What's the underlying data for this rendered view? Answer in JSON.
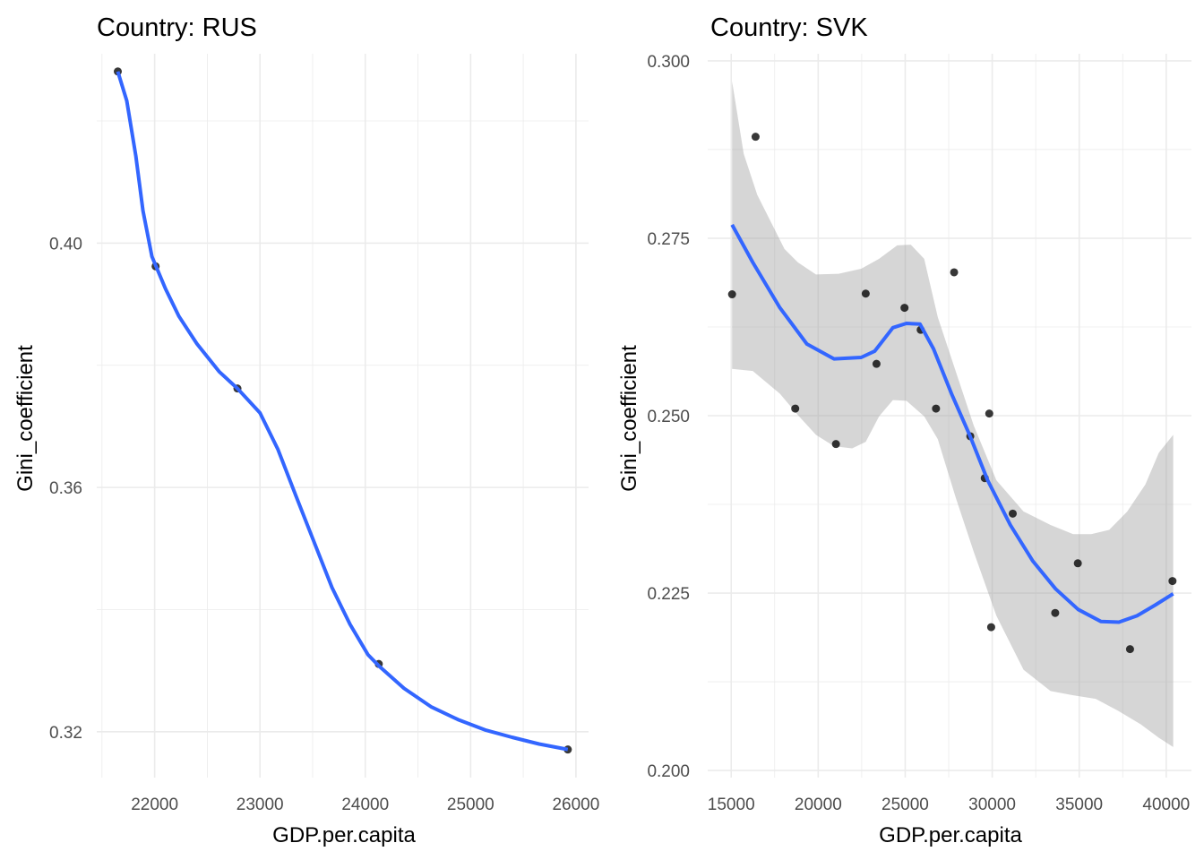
{
  "chart_data": [
    {
      "type": "scatter",
      "title": "Country: RUS",
      "xlabel": "GDP.per.capita",
      "ylabel": "Gini_coefficient",
      "xlim": [
        21450,
        26120
      ],
      "ylim": [
        0.3125,
        0.431
      ],
      "x_ticks": [
        22000,
        23000,
        24000,
        25000,
        26000
      ],
      "x_tick_labels": [
        "22000",
        "23000",
        "24000",
        "25000",
        "26000"
      ],
      "y_ticks": [
        0.32,
        0.36,
        0.4
      ],
      "y_tick_labels": [
        "0.32",
        "0.36",
        "0.40"
      ],
      "grid": true,
      "smooth_color": "#3366ff",
      "point_color": "#000000",
      "points": [
        {
          "x": 21650,
          "y": 0.4281
        },
        {
          "x": 22009,
          "y": 0.3962
        },
        {
          "x": 22786,
          "y": 0.3762
        },
        {
          "x": 24128,
          "y": 0.3311
        },
        {
          "x": 25923,
          "y": 0.3171
        }
      ],
      "smooth": [
        [
          21650,
          0.4281
        ],
        [
          21735,
          0.4233
        ],
        [
          21821,
          0.4143
        ],
        [
          21889,
          0.4053
        ],
        [
          21974,
          0.3978
        ],
        [
          22103,
          0.3925
        ],
        [
          22231,
          0.388
        ],
        [
          22402,
          0.3835
        ],
        [
          22615,
          0.3789
        ],
        [
          22786,
          0.3762
        ],
        [
          23000,
          0.3722
        ],
        [
          23171,
          0.3662
        ],
        [
          23342,
          0.3586
        ],
        [
          23513,
          0.3511
        ],
        [
          23684,
          0.3436
        ],
        [
          23855,
          0.3376
        ],
        [
          24026,
          0.3326
        ],
        [
          24128,
          0.3308
        ],
        [
          24368,
          0.3271
        ],
        [
          24624,
          0.3241
        ],
        [
          24880,
          0.322
        ],
        [
          25137,
          0.3203
        ],
        [
          25393,
          0.3191
        ],
        [
          25650,
          0.318
        ],
        [
          25923,
          0.3171
        ]
      ]
    },
    {
      "type": "scatter",
      "title": "Country: SVK",
      "xlabel": "GDP.per.capita",
      "ylabel": "Gini_coefficient",
      "xlim": [
        13650,
        41450
      ],
      "ylim": [
        0.199,
        0.301
      ],
      "x_ticks": [
        15000,
        20000,
        25000,
        30000,
        35000,
        40000
      ],
      "x_tick_labels": [
        "15000",
        "20000",
        "25000",
        "30000",
        "35000",
        "40000"
      ],
      "y_ticks": [
        0.2,
        0.225,
        0.25,
        0.275,
        0.3
      ],
      "y_tick_labels": [
        "0.200",
        "0.225",
        "0.250",
        "0.275",
        "0.300"
      ],
      "grid": true,
      "smooth_color": "#3366ff",
      "ribbon_color": "#999999",
      "point_color": "#000000",
      "points": [
        {
          "x": 15050,
          "y": 0.2671
        },
        {
          "x": 16400,
          "y": 0.2893
        },
        {
          "x": 18680,
          "y": 0.251
        },
        {
          "x": 21020,
          "y": 0.246
        },
        {
          "x": 22730,
          "y": 0.2672
        },
        {
          "x": 23350,
          "y": 0.2573
        },
        {
          "x": 24960,
          "y": 0.2652
        },
        {
          "x": 25890,
          "y": 0.2621
        },
        {
          "x": 26770,
          "y": 0.251
        },
        {
          "x": 27810,
          "y": 0.2702
        },
        {
          "x": 28740,
          "y": 0.2471
        },
        {
          "x": 29570,
          "y": 0.2412
        },
        {
          "x": 29830,
          "y": 0.2503
        },
        {
          "x": 29940,
          "y": 0.2202
        },
        {
          "x": 31180,
          "y": 0.2362
        },
        {
          "x": 33620,
          "y": 0.2222
        },
        {
          "x": 34920,
          "y": 0.2292
        },
        {
          "x": 37920,
          "y": 0.2171
        },
        {
          "x": 40360,
          "y": 0.2267
        }
      ],
      "smooth": [
        [
          15050,
          0.2769
        ],
        [
          16240,
          0.2716
        ],
        [
          17800,
          0.2652
        ],
        [
          19350,
          0.2601
        ],
        [
          20910,
          0.258
        ],
        [
          22470,
          0.2582
        ],
        [
          23250,
          0.2591
        ],
        [
          24290,
          0.2624
        ],
        [
          25070,
          0.263
        ],
        [
          25850,
          0.2629
        ],
        [
          26630,
          0.2594
        ],
        [
          27660,
          0.2531
        ],
        [
          28700,
          0.2473
        ],
        [
          29740,
          0.2409
        ],
        [
          31040,
          0.2346
        ],
        [
          32340,
          0.2295
        ],
        [
          33640,
          0.2256
        ],
        [
          34940,
          0.2227
        ],
        [
          36240,
          0.221
        ],
        [
          37280,
          0.2209
        ],
        [
          38320,
          0.2218
        ],
        [
          39360,
          0.2233
        ],
        [
          40400,
          0.2249
        ]
      ],
      "ribbon_upper": [
        [
          15050,
          0.2971
        ],
        [
          15720,
          0.2869
        ],
        [
          16500,
          0.2811
        ],
        [
          17280,
          0.2773
        ],
        [
          18060,
          0.2735
        ],
        [
          18830,
          0.2716
        ],
        [
          19870,
          0.2699
        ],
        [
          21170,
          0.27
        ],
        [
          22470,
          0.2707
        ],
        [
          23500,
          0.2721
        ],
        [
          24540,
          0.274
        ],
        [
          25320,
          0.2741
        ],
        [
          26090,
          0.2721
        ],
        [
          26870,
          0.2639
        ],
        [
          27910,
          0.2562
        ],
        [
          28940,
          0.2486
        ],
        [
          30240,
          0.2409
        ],
        [
          31800,
          0.2365
        ],
        [
          33350,
          0.2346
        ],
        [
          34650,
          0.2333
        ],
        [
          35690,
          0.2333
        ],
        [
          36720,
          0.2339
        ],
        [
          37760,
          0.2365
        ],
        [
          38800,
          0.2403
        ],
        [
          39580,
          0.2448
        ],
        [
          40400,
          0.2473
        ]
      ],
      "ribbon_lower": [
        [
          15050,
          0.2566
        ],
        [
          16240,
          0.2563
        ],
        [
          17800,
          0.2531
        ],
        [
          18830,
          0.2501
        ],
        [
          19870,
          0.2473
        ],
        [
          20910,
          0.2457
        ],
        [
          21950,
          0.2454
        ],
        [
          22730,
          0.2463
        ],
        [
          23500,
          0.2499
        ],
        [
          24290,
          0.2522
        ],
        [
          25070,
          0.2521
        ],
        [
          26090,
          0.2499
        ],
        [
          26870,
          0.2467
        ],
        [
          27910,
          0.2384
        ],
        [
          28940,
          0.2308
        ],
        [
          30240,
          0.2218
        ],
        [
          31800,
          0.2142
        ],
        [
          33350,
          0.2112
        ],
        [
          34650,
          0.2106
        ],
        [
          35950,
          0.2101
        ],
        [
          37240,
          0.2084
        ],
        [
          38540,
          0.2065
        ],
        [
          39580,
          0.2046
        ],
        [
          40400,
          0.2033
        ]
      ]
    }
  ]
}
